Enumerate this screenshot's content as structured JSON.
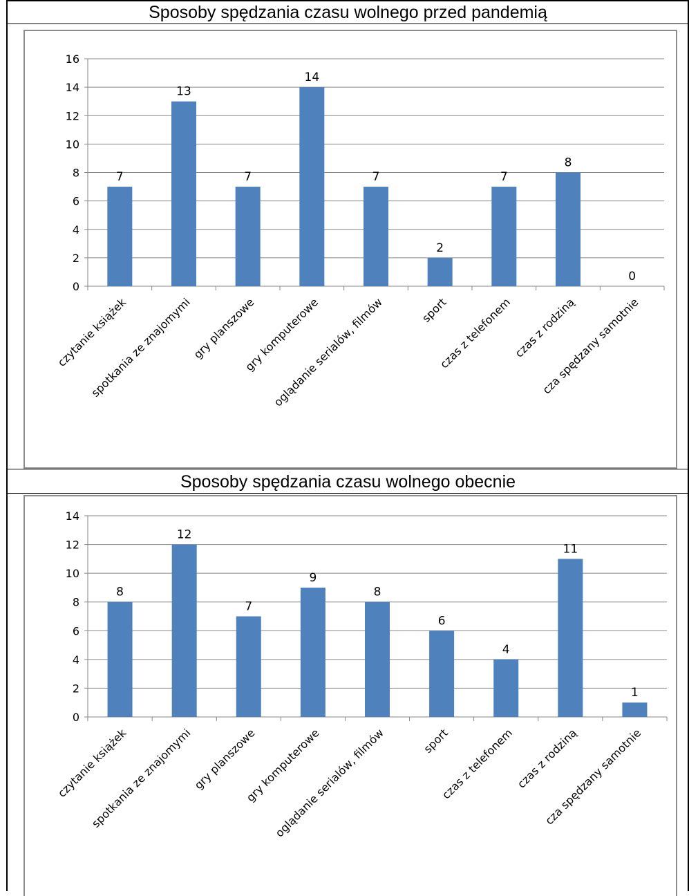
{
  "chart_data": [
    {
      "type": "bar",
      "title": "Sposoby spędzania czasu wolnego przed pandemią",
      "categories": [
        "czytanie książek",
        "spotkania ze znajomymi",
        "gry planszowe",
        "gry komputerowe",
        "oglądanie serialów, filmów",
        "sport",
        "czas z telefonem",
        "czas z rodziną",
        "cza spędzany samotnie"
      ],
      "values": [
        7,
        13,
        7,
        14,
        7,
        2,
        7,
        8,
        0
      ],
      "ylim": [
        0,
        16
      ],
      "yticks": [
        "0",
        "2",
        "4",
        "6",
        "8",
        "10",
        "12",
        "14",
        "16"
      ],
      "grid": true,
      "bar_color": "#4f81bd"
    },
    {
      "type": "bar",
      "title": "Sposoby spędzania czasu wolnego obecnie",
      "categories": [
        "czytanie książek",
        "spotkania ze znajomymi",
        "gry planszowe",
        "gry komputerowe",
        "oglądanie serialów, filmów",
        "sport",
        "czas z telefonem",
        "czas z rodziną",
        "cza spędzany samotnie"
      ],
      "values": [
        8,
        12,
        7,
        9,
        8,
        6,
        4,
        11,
        1
      ],
      "ylim": [
        0,
        14
      ],
      "yticks": [
        "0",
        "2",
        "4",
        "6",
        "8",
        "10",
        "12",
        "14"
      ],
      "grid": true,
      "bar_color": "#4f81bd"
    }
  ]
}
